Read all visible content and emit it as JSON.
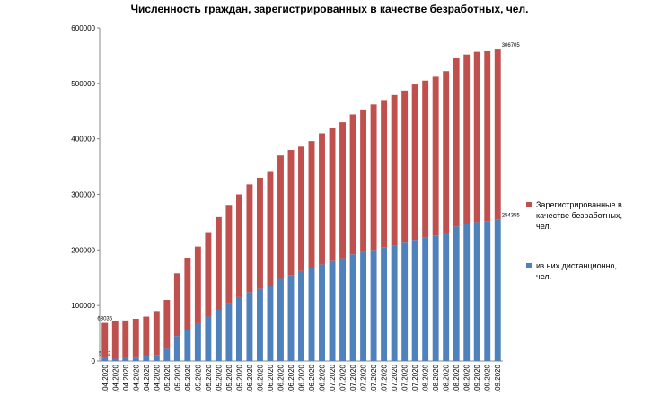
{
  "chart_data": {
    "type": "bar",
    "stacked": true,
    "title": "Численность граждан, зарегистрированных в качестве безработных, чел.",
    "categories": [
      ".04.2020",
      ".04.2020",
      ".04.2020",
      ".04.2020",
      ".04.2020",
      ".04.2020",
      ".05.2020",
      ".05.2020",
      ".05.2020",
      ".05.2020",
      ".05.2020",
      ".05.2020",
      ".05.2020",
      ".05.2020",
      ".06.2020",
      ".06.2020",
      ".06.2020",
      ".06.2020",
      ".06.2020",
      ".06.2020",
      ".06.2020",
      ".06.2020",
      ".07.2020",
      ".07.2020",
      ".07.2020",
      ".07.2020",
      ".07.2020",
      ".07.2020",
      ".07.2020",
      ".07.2020",
      ".07.2020",
      ".08.2020",
      ".08.2020",
      ".08.2020",
      ".08.2020",
      ".08.2020",
      ".09.2020",
      ".09.2020",
      ".09.2020"
    ],
    "series": [
      {
        "name": "Зарегистрированные в качестве безработных, чел.",
        "color": "#c0504d",
        "values": [
          63036,
          68000,
          68000,
          70000,
          72000,
          79000,
          88000,
          113000,
          131000,
          138000,
          152000,
          166000,
          176000,
          185000,
          194000,
          200000,
          207000,
          222000,
          225000,
          224000,
          228000,
          236000,
          240000,
          245000,
          252000,
          257000,
          262000,
          265000,
          271000,
          274000,
          280000,
          283000,
          286000,
          292000,
          303000,
          305000,
          307000,
          306000,
          306705
        ]
      },
      {
        "name": "из них дистанционно, чел.",
        "color": "#4f81bd",
        "values": [
          5532,
          4000,
          5000,
          6000,
          8000,
          11000,
          22000,
          45000,
          55000,
          68000,
          80000,
          93000,
          105000,
          115000,
          124000,
          130000,
          135000,
          148000,
          155000,
          162000,
          168000,
          174000,
          180000,
          185000,
          192000,
          196000,
          200000,
          205000,
          208000,
          213000,
          218000,
          222000,
          226000,
          230000,
          242000,
          247000,
          250000,
          252000,
          254355
        ]
      }
    ],
    "ylim": [
      0,
      600000
    ],
    "yticks": [
      0,
      100000,
      200000,
      300000,
      400000,
      500000,
      600000
    ],
    "grid": false
  }
}
